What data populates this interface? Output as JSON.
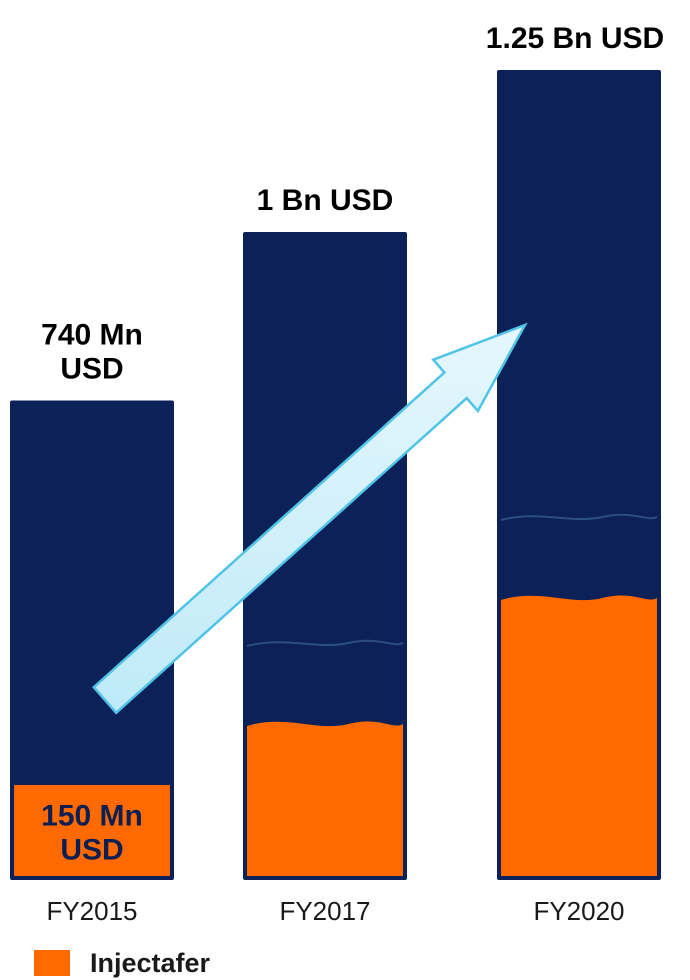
{
  "chart_data": {
    "type": "bar",
    "categories": [
      "FY2015",
      "FY2017",
      "FY2020"
    ],
    "series": [
      {
        "name": "Injectafer",
        "values": [
          150,
          null,
          null
        ]
      }
    ],
    "totals": [
      740,
      1000,
      1250
    ],
    "total_labels": [
      [
        "740 Mn",
        "USD"
      ],
      [
        "1 Bn USD"
      ],
      [
        "1.25 Bn USD"
      ]
    ],
    "segment_labels": [
      [
        "150 Mn",
        "USD"
      ],
      [],
      []
    ],
    "legend": [
      "Injectafer"
    ],
    "legend_position": "bottom-left",
    "grid": false,
    "annotations": [
      "upward growth arrow from FY2015 to FY2020"
    ]
  },
  "colors": {
    "total_bar": "#0b2157",
    "injectafer": "#ff6a00",
    "arrow_fill": "#bfeaf8",
    "arrow_stroke": "#4fc3e8"
  }
}
